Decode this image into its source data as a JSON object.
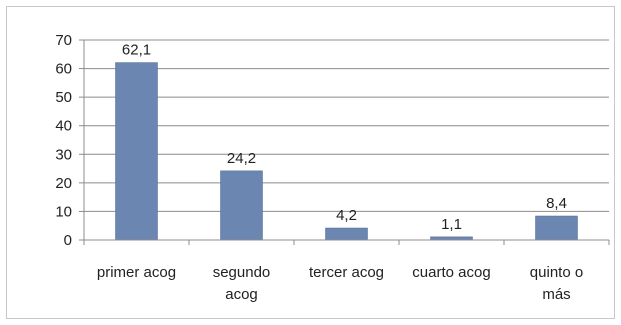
{
  "chart_data": {
    "type": "bar",
    "categories": [
      [
        "primer acog"
      ],
      [
        "segundo",
        "acog"
      ],
      [
        "tercer acog"
      ],
      [
        "cuarto acog"
      ],
      [
        "quinto o",
        "más"
      ]
    ],
    "values": [
      62.1,
      24.2,
      4.2,
      1.1,
      8.4
    ],
    "data_labels": [
      "62,1",
      "24,2",
      "4,2",
      "1,1",
      "8,4"
    ],
    "yticks": [
      "0",
      "10",
      "20",
      "30",
      "40",
      "50",
      "60",
      "70"
    ],
    "ylim": [
      0,
      70
    ],
    "grid": true,
    "legend": "none",
    "colors": {
      "bar": "#6b86b0",
      "bar_edge": "#4f6a94",
      "grid": "#8c8c8c",
      "axis": "#8c8c8c"
    }
  }
}
